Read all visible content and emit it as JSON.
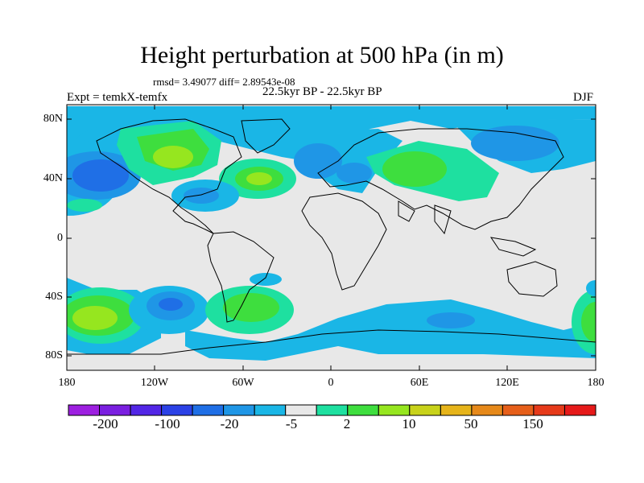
{
  "title": "Height perturbation at 500 hPa (in m)",
  "stats": "rmsd= 3.49077 diff= 2.89543e-08",
  "period": "22.5kyr BP - 22.5kyr BP",
  "expt": "Expt = temkX-temfx",
  "season": "DJF",
  "lat_labels": [
    "80N",
    "40N",
    "0",
    "40S",
    "80S"
  ],
  "lon_labels": [
    "180",
    "120W",
    "60W",
    "0",
    "60E",
    "120E",
    "180"
  ],
  "colorbar": {
    "colors": [
      "#9d1fe0",
      "#7a1fe0",
      "#5226e6",
      "#2b41e6",
      "#1f6fe6",
      "#1f96e6",
      "#1ab6e6",
      "#e8e8e8",
      "#1ee0a0",
      "#3ede3e",
      "#96e61f",
      "#c8d21a",
      "#e6b41a",
      "#e6891a",
      "#e65f1a",
      "#e63a1a",
      "#e61a1a"
    ],
    "labels": [
      "-200",
      "-100",
      "-20",
      "-5",
      "2",
      "10",
      "50",
      "150"
    ]
  },
  "map_background": "#e8e8e8"
}
